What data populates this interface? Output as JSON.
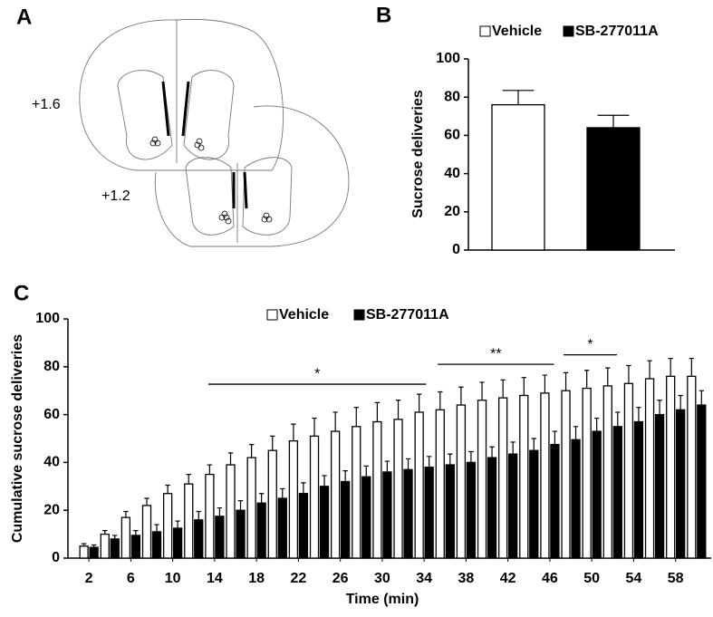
{
  "diagram": {
    "panel_label": "A",
    "levels": [
      "+1.6",
      "+1.2"
    ]
  },
  "chart_data": [
    {
      "type": "bar",
      "panel_label": "B",
      "ylabel": "Sucrose deliveries",
      "series": [
        {
          "name": "Vehicle",
          "color": "#ffffff",
          "values": [
            76
          ],
          "errors": [
            7.5
          ]
        },
        {
          "name": "SB-277011A",
          "color": "#000000",
          "values": [
            64
          ],
          "errors": [
            6.5
          ]
        }
      ],
      "ylim": [
        0,
        100
      ],
      "yticks": [
        0,
        20,
        40,
        60,
        80,
        100
      ],
      "legend": "top"
    },
    {
      "type": "bar",
      "panel_label": "C",
      "xlabel": "Time (min)",
      "ylabel": "Cumulative sucrose deliveries",
      "x": [
        2,
        4,
        6,
        8,
        10,
        12,
        14,
        16,
        18,
        20,
        22,
        24,
        26,
        28,
        30,
        32,
        34,
        36,
        38,
        40,
        42,
        44,
        46,
        48,
        50,
        52,
        54,
        56,
        58,
        60
      ],
      "xlim": [
        0,
        61.4
      ],
      "xticks": [
        2,
        6,
        10,
        14,
        18,
        22,
        26,
        30,
        34,
        38,
        42,
        46,
        50,
        54,
        58
      ],
      "series": [
        {
          "name": "Vehicle",
          "color": "#ffffff",
          "values": [
            5,
            10,
            17,
            22,
            27,
            31,
            35,
            39,
            42,
            45,
            49,
            51,
            53,
            55,
            57,
            58,
            61,
            62,
            64,
            66,
            67,
            68,
            69,
            70,
            71,
            72,
            73,
            75,
            76,
            76
          ],
          "errors": [
            1,
            1.5,
            2.5,
            3,
            3.5,
            4,
            4,
            5,
            5.5,
            6,
            7,
            7.5,
            8,
            8,
            8,
            8,
            7.5,
            7.5,
            7.5,
            7.5,
            7.5,
            7.5,
            7.5,
            7.5,
            7.5,
            7.5,
            7.5,
            7.5,
            7.5,
            7.5
          ]
        },
        {
          "name": "SB-277011A",
          "color": "#000000",
          "values": [
            4.5,
            8,
            9.5,
            11,
            12.5,
            16,
            17.5,
            20,
            23,
            25,
            27,
            30,
            32,
            34,
            36,
            37,
            38,
            39,
            40,
            42,
            43.5,
            45,
            47.5,
            49.5,
            53,
            55,
            57,
            60,
            62,
            64
          ],
          "errors": [
            1,
            1.5,
            2,
            3,
            3,
            3.5,
            3.5,
            4,
            4,
            4,
            4.5,
            4.5,
            4.5,
            4.5,
            4.5,
            4.5,
            4.5,
            4.5,
            4.5,
            4.5,
            5,
            5,
            5.5,
            5.5,
            5.5,
            6,
            6,
            6,
            6,
            6
          ]
        }
      ],
      "ylim": [
        0,
        100
      ],
      "yticks": [
        0,
        20,
        40,
        60,
        80,
        100
      ],
      "legend": "top",
      "annotations": [
        "*",
        "**",
        "*"
      ]
    }
  ]
}
